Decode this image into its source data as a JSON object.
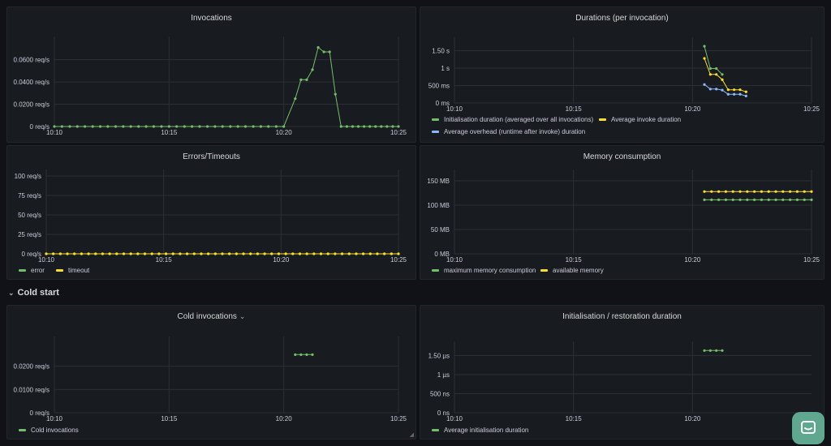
{
  "panels": {
    "invocations": {
      "title": "Invocations"
    },
    "durations": {
      "title": "Durations (per invocation)"
    },
    "errors": {
      "title": "Errors/Timeouts"
    },
    "memory": {
      "title": "Memory consumption"
    },
    "cold_invocations": {
      "title": "Cold invocations"
    },
    "init_duration": {
      "title": "Initialisation / restoration duration"
    }
  },
  "row": {
    "title": "Cold start"
  },
  "colors": {
    "green": "#73bf69",
    "yellow": "#fade2a",
    "blue": "#8ab8ff",
    "grid": "#2c2f35",
    "text": "#ccccdc"
  },
  "icons": {
    "row_toggle": "chevron-down-icon",
    "panel_menu": "chevron-down-icon",
    "chat": "chat-icon"
  },
  "chart_data": [
    {
      "id": "invocations",
      "type": "line",
      "title": "Invocations",
      "x_ticks": [
        "10:10",
        "10:15",
        "10:20",
        "10:25"
      ],
      "y_ticks": [
        "0 req/s",
        "0.0200 req/s",
        "0.0400 req/s",
        "0.0600 req/s"
      ],
      "xlim": [
        0,
        15
      ],
      "ylim": [
        0,
        0.075
      ],
      "series": [
        {
          "color": "#73bf69",
          "x": [
            0,
            0.33,
            0.67,
            1,
            1.33,
            1.67,
            2,
            2.33,
            2.67,
            3,
            3.33,
            3.67,
            4,
            4.33,
            4.67,
            5,
            5.33,
            5.67,
            6,
            6.33,
            6.67,
            7,
            7.33,
            7.67,
            8,
            8.33,
            8.67,
            9,
            9.33,
            9.67,
            10,
            10.5,
            10.75,
            11,
            11.25,
            11.5,
            11.75,
            12,
            12.25,
            12.5,
            12.75,
            13,
            13.25,
            13.5,
            13.75,
            14,
            14.25,
            14.5,
            14.75,
            15
          ],
          "y": [
            0,
            0,
            0,
            0,
            0,
            0,
            0,
            0,
            0,
            0,
            0,
            0,
            0,
            0,
            0,
            0,
            0,
            0,
            0,
            0,
            0,
            0,
            0,
            0,
            0,
            0,
            0,
            0,
            0,
            0,
            0,
            0.025,
            0.042,
            0.042,
            0.051,
            0.071,
            0.067,
            0.067,
            0.029,
            0,
            0,
            0,
            0,
            0,
            0,
            0,
            0,
            0,
            0,
            0
          ]
        }
      ],
      "legend": []
    },
    {
      "id": "durations",
      "type": "line",
      "title": "Durations (per invocation)",
      "x_ticks": [
        "10:10",
        "10:15",
        "10:20",
        "10:25"
      ],
      "y_ticks": [
        "0 ms",
        "500 ms",
        "1 s",
        "1.50 s"
      ],
      "xlim": [
        0,
        15
      ],
      "ylim": [
        0,
        1.7
      ],
      "series": [
        {
          "name": "Initialisation duration (averaged over all invocations)",
          "color": "#73bf69",
          "x": [
            10.5,
            10.75,
            11,
            11.25
          ],
          "y": [
            1.63,
            0.99,
            0.99,
            0.82
          ]
        },
        {
          "name": "Average invoke duration",
          "color": "#fade2a",
          "x": [
            10.5,
            10.75,
            11,
            11.25,
            11.5,
            11.75,
            12,
            12.25
          ],
          "y": [
            1.28,
            0.82,
            0.82,
            0.67,
            0.38,
            0.38,
            0.38,
            0.32
          ]
        },
        {
          "name": "Average overhead (runtime after invoke) duration",
          "color": "#8ab8ff",
          "x": [
            10.5,
            10.75,
            11,
            11.25,
            11.5,
            11.75,
            12,
            12.25
          ],
          "y": [
            0.53,
            0.4,
            0.4,
            0.37,
            0.25,
            0.25,
            0.25,
            0.2
          ]
        }
      ],
      "legend": [
        "Initialisation duration (averaged over all invocations)",
        "Average invoke duration",
        "Average overhead (runtime after invoke) duration"
      ]
    },
    {
      "id": "errors",
      "type": "line",
      "title": "Errors/Timeouts",
      "x_ticks": [
        "10:10",
        "10:15",
        "10:20",
        "10:25"
      ],
      "y_ticks": [
        "0 req/s",
        "25 req/s",
        "50 req/s",
        "75 req/s",
        "100 req/s"
      ],
      "xlim": [
        0,
        15
      ],
      "ylim": [
        0,
        100
      ],
      "series": [
        {
          "name": "error",
          "color": "#73bf69",
          "flat": 0,
          "from": 0,
          "to": 15,
          "step": 0.3
        },
        {
          "name": "timeout",
          "color": "#fade2a",
          "flat": 0,
          "from": 0,
          "to": 15,
          "step": 0.3
        }
      ],
      "legend": [
        "error",
        "timeout"
      ]
    },
    {
      "id": "memory",
      "type": "line",
      "title": "Memory consumption",
      "x_ticks": [
        "10:10",
        "10:15",
        "10:20",
        "10:25"
      ],
      "y_ticks": [
        "0 MB",
        "50 MB",
        "100 MB",
        "150 MB"
      ],
      "xlim": [
        0,
        15
      ],
      "ylim": [
        0,
        160
      ],
      "series": [
        {
          "name": "maximum memory consumption",
          "color": "#73bf69",
          "flat": 111,
          "from": 10.5,
          "to": 15,
          "step": 0.3
        },
        {
          "name": "available memory",
          "color": "#fade2a",
          "flat": 128,
          "from": 10.5,
          "to": 15,
          "step": 0.3
        }
      ],
      "legend": [
        "maximum memory consumption",
        "available memory"
      ]
    },
    {
      "id": "cold_invocations",
      "type": "line",
      "title": "Cold invocations",
      "x_ticks": [
        "10:10",
        "10:15",
        "10:20",
        "10:25"
      ],
      "y_ticks": [
        "0 req/s",
        "0.0100 req/s",
        "0.0200 req/s"
      ],
      "xlim": [
        0,
        15
      ],
      "ylim": [
        0,
        0.03
      ],
      "series": [
        {
          "name": "Cold invocations",
          "color": "#73bf69",
          "x": [
            10.5,
            10.75,
            11,
            11.25
          ],
          "y": [
            0.025,
            0.025,
            0.025,
            0.025
          ]
        }
      ],
      "legend": [
        "Cold invocations"
      ]
    },
    {
      "id": "init_duration",
      "type": "line",
      "title": "Initialisation / restoration duration",
      "x_ticks": [
        "10:10",
        "10:15",
        "10:20"
      ],
      "y_ticks": [
        "0 ns",
        "500 ns",
        "1 µs",
        "1.50 µs"
      ],
      "xlim": [
        0,
        15
      ],
      "ylim": [
        0,
        1.7
      ],
      "series": [
        {
          "name": "Average initialisation duration",
          "color": "#73bf69",
          "x": [
            10.5,
            10.75,
            11,
            11.25
          ],
          "y": [
            1.63,
            1.63,
            1.63,
            1.63
          ]
        }
      ],
      "legend": [
        "Average initialisation duration"
      ]
    }
  ]
}
